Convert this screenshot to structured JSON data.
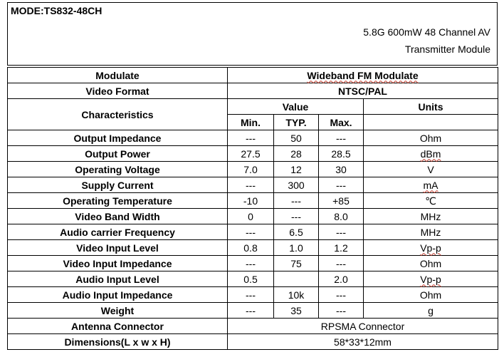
{
  "header": {
    "model": "MODE:TS832-48CH",
    "subtitle_line1": "5.8G 600mW 48 Channel AV",
    "subtitle_line2": "Transmitter Module"
  },
  "modulate": {
    "label": "Modulate",
    "value": "Wideband FM Modulate"
  },
  "video_format": {
    "label": "Video Format",
    "value": "NTSC/PAL"
  },
  "characteristics": {
    "label": "Characteristics",
    "value_header": "Value",
    "units_header": "Units",
    "min_header": "Min.",
    "typ_header": "TYP.",
    "max_header": "Max."
  },
  "rows": [
    {
      "name": "Output Impedance",
      "min": "---",
      "typ": "50",
      "max": "---",
      "unit": "Ohm"
    },
    {
      "name": "Output Power",
      "min": "27.5",
      "typ": "28",
      "max": "28.5",
      "unit": "dBm"
    },
    {
      "name": "Operating Voltage",
      "min": "7.0",
      "typ": "12",
      "max": "30",
      "unit": "V"
    },
    {
      "name": "Supply Current",
      "min": "---",
      "typ": "300",
      "max": "---",
      "unit": "mA"
    },
    {
      "name": "Operating Temperature",
      "min": "-10",
      "typ": "---",
      "max": "+85",
      "unit": "℃"
    },
    {
      "name": "Video Band Width",
      "min": "0",
      "typ": "---",
      "max": "8.0",
      "unit": "MHz"
    },
    {
      "name": "Audio carrier Frequency",
      "min": "---",
      "typ": "6.5",
      "max": "---",
      "unit": "MHz"
    },
    {
      "name": "Video Input Level",
      "min": "0.8",
      "typ": "1.0",
      "max": "1.2",
      "unit": "Vp-p"
    },
    {
      "name": "Video Input Impedance",
      "min": "---",
      "typ": "75",
      "max": "---",
      "unit": "Ohm"
    },
    {
      "name": "Audio Input Level",
      "min": "0.5",
      "typ": "",
      "max": "2.0",
      "unit": "Vp-p"
    },
    {
      "name": "Audio Input Impedance",
      "min": "---",
      "typ": "10k",
      "max": "---",
      "unit": "Ohm"
    },
    {
      "name": "Weight",
      "min": "---",
      "typ": "35",
      "max": "---",
      "unit": "g"
    }
  ],
  "antenna": {
    "label": "Antenna Connector",
    "value": "RPSMA Connector"
  },
  "dimensions": {
    "label": "Dimensions(L x w x H)",
    "value": "58*33*12mm"
  }
}
